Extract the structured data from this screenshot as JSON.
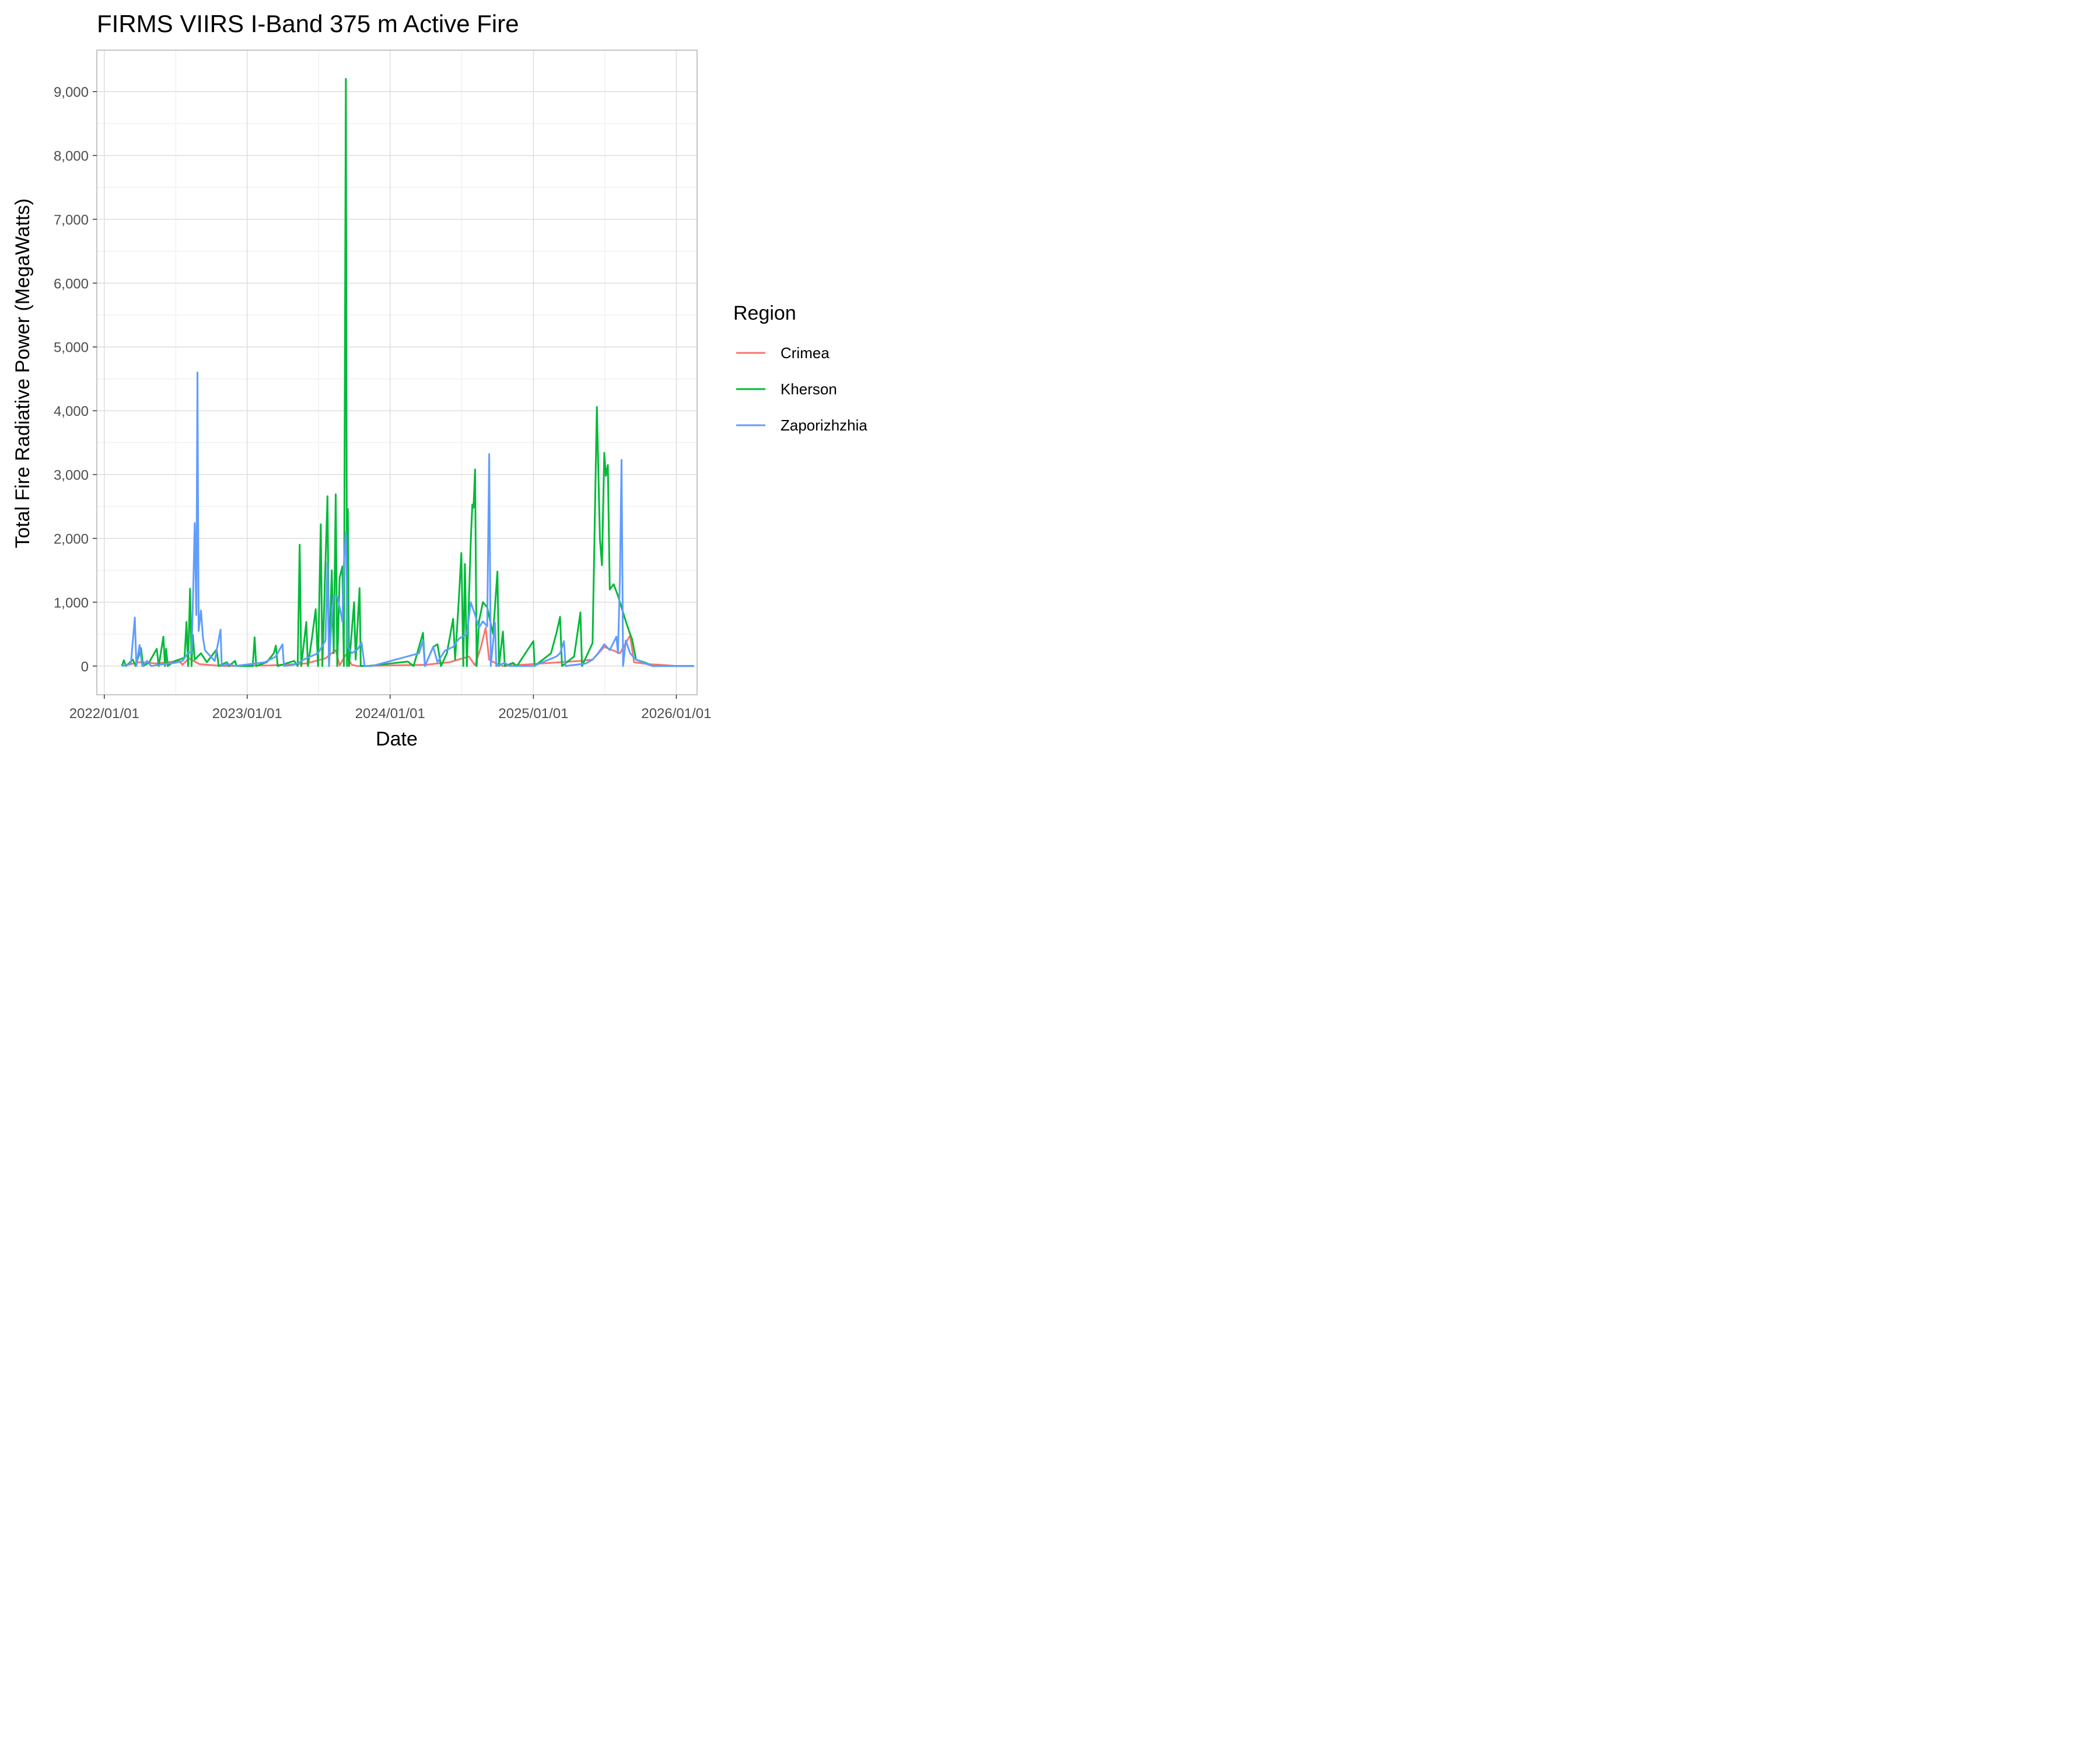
{
  "chart_data": {
    "type": "line",
    "title": "FIRMS VIIRS I-Band 375 m Active Fire",
    "xlabel": "Date",
    "ylabel": "Total Fire Radiative Power (MegaWatts)",
    "xlim": [
      "2021-12-13",
      "2026-02-23"
    ],
    "ylim": [
      -450,
      9650
    ],
    "x_ticks": [
      {
        "date": "2022-01-01",
        "label": "2022/01/01"
      },
      {
        "date": "2023-01-01",
        "label": "2023/01/01"
      },
      {
        "date": "2024-01-01",
        "label": "2024/01/01"
      },
      {
        "date": "2025-01-01",
        "label": "2025/01/01"
      },
      {
        "date": "2026-01-01",
        "label": "2026/01/01"
      }
    ],
    "y_ticks": [
      {
        "value": 0,
        "label": "0"
      },
      {
        "value": 1000,
        "label": "1,000"
      },
      {
        "value": 2000,
        "label": "2,000"
      },
      {
        "value": 3000,
        "label": "3,000"
      },
      {
        "value": 4000,
        "label": "4,000"
      },
      {
        "value": 5000,
        "label": "5,000"
      },
      {
        "value": 6000,
        "label": "6,000"
      },
      {
        "value": 7000,
        "label": "7,000"
      },
      {
        "value": 8000,
        "label": "8,000"
      },
      {
        "value": 9000,
        "label": "9,000"
      }
    ],
    "grid": true,
    "legend": {
      "title": "Region",
      "position": "right"
    },
    "series": [
      {
        "name": "Crimea",
        "color": "#F8766D",
        "points": [
          [
            "2022-02-15",
            0
          ],
          [
            "2022-03-10",
            30
          ],
          [
            "2022-04-01",
            60
          ],
          [
            "2022-05-15",
            40
          ],
          [
            "2022-07-10",
            80
          ],
          [
            "2022-07-20",
            20
          ],
          [
            "2022-08-05",
            120
          ],
          [
            "2022-09-01",
            30
          ],
          [
            "2022-11-01",
            0
          ],
          [
            "2023-03-01",
            10
          ],
          [
            "2023-06-01",
            40
          ],
          [
            "2023-07-20",
            120
          ],
          [
            "2023-08-15",
            250
          ],
          [
            "2023-08-25",
            10
          ],
          [
            "2023-09-10",
            180
          ],
          [
            "2023-09-25",
            20
          ],
          [
            "2023-10-10",
            0
          ],
          [
            "2024-04-01",
            20
          ],
          [
            "2024-06-01",
            60
          ],
          [
            "2024-07-20",
            150
          ],
          [
            "2024-08-05",
            10
          ],
          [
            "2024-08-20",
            300
          ],
          [
            "2024-09-01",
            600
          ],
          [
            "2024-09-10",
            100
          ],
          [
            "2024-09-25",
            50
          ],
          [
            "2024-10-15",
            0
          ],
          [
            "2025-05-01",
            80
          ],
          [
            "2025-06-01",
            100
          ],
          [
            "2025-07-01",
            300
          ],
          [
            "2025-08-10",
            200
          ],
          [
            "2025-09-05",
            480
          ],
          [
            "2025-09-15",
            60
          ],
          [
            "2025-10-20",
            30
          ],
          [
            "2025-11-20",
            20
          ],
          [
            "2026-01-01",
            0
          ],
          [
            "2026-02-15",
            0
          ]
        ]
      },
      {
        "name": "Kherson",
        "color": "#00BA38",
        "points": [
          [
            "2022-02-15",
            0
          ],
          [
            "2022-02-20",
            90
          ],
          [
            "2022-02-25",
            0
          ],
          [
            "2022-03-15",
            100
          ],
          [
            "2022-03-22",
            0
          ],
          [
            "2022-04-05",
            280
          ],
          [
            "2022-04-10",
            0
          ],
          [
            "2022-04-25",
            50
          ],
          [
            "2022-05-15",
            270
          ],
          [
            "2022-05-20",
            0
          ],
          [
            "2022-06-01",
            460
          ],
          [
            "2022-06-05",
            0
          ],
          [
            "2022-06-08",
            270
          ],
          [
            "2022-06-12",
            0
          ],
          [
            "2022-07-01",
            80
          ],
          [
            "2022-07-25",
            130
          ],
          [
            "2022-07-30",
            690
          ],
          [
            "2022-08-03",
            0
          ],
          [
            "2022-08-08",
            1210
          ],
          [
            "2022-08-12",
            0
          ],
          [
            "2022-08-15",
            490
          ],
          [
            "2022-08-20",
            100
          ],
          [
            "2022-09-05",
            200
          ],
          [
            "2022-09-20",
            60
          ],
          [
            "2022-10-15",
            260
          ],
          [
            "2022-10-20",
            0
          ],
          [
            "2022-11-10",
            60
          ],
          [
            "2022-11-15",
            0
          ],
          [
            "2022-12-01",
            80
          ],
          [
            "2022-12-05",
            0
          ],
          [
            "2023-01-15",
            0
          ],
          [
            "2023-01-20",
            450
          ],
          [
            "2023-01-24",
            0
          ],
          [
            "2023-02-20",
            60
          ],
          [
            "2023-03-10",
            200
          ],
          [
            "2023-03-15",
            320
          ],
          [
            "2023-03-20",
            0
          ],
          [
            "2023-05-01",
            80
          ],
          [
            "2023-05-10",
            0
          ],
          [
            "2023-05-15",
            1900
          ],
          [
            "2023-05-19",
            0
          ],
          [
            "2023-06-01",
            690
          ],
          [
            "2023-06-05",
            0
          ],
          [
            "2023-06-15",
            420
          ],
          [
            "2023-06-25",
            890
          ],
          [
            "2023-07-01",
            0
          ],
          [
            "2023-07-08",
            2220
          ],
          [
            "2023-07-12",
            0
          ],
          [
            "2023-07-25",
            2660
          ],
          [
            "2023-07-29",
            0
          ],
          [
            "2023-08-05",
            1500
          ],
          [
            "2023-08-10",
            200
          ],
          [
            "2023-08-15",
            2690
          ],
          [
            "2023-08-19",
            0
          ],
          [
            "2023-08-25",
            1380
          ],
          [
            "2023-09-01",
            1560
          ],
          [
            "2023-09-05",
            0
          ],
          [
            "2023-09-10",
            9200
          ],
          [
            "2023-09-13",
            0
          ],
          [
            "2023-09-15",
            2460
          ],
          [
            "2023-09-18",
            0
          ],
          [
            "2023-10-01",
            1000
          ],
          [
            "2023-10-05",
            100
          ],
          [
            "2023-10-15",
            1220
          ],
          [
            "2023-10-18",
            0
          ],
          [
            "2023-11-05",
            0
          ],
          [
            "2024-02-15",
            70
          ],
          [
            "2024-03-01",
            0
          ],
          [
            "2024-03-25",
            520
          ],
          [
            "2024-03-30",
            0
          ],
          [
            "2024-04-20",
            300
          ],
          [
            "2024-05-01",
            340
          ],
          [
            "2024-05-10",
            0
          ],
          [
            "2024-05-25",
            200
          ],
          [
            "2024-06-10",
            740
          ],
          [
            "2024-06-15",
            100
          ],
          [
            "2024-06-25",
            1100
          ],
          [
            "2024-07-01",
            1770
          ],
          [
            "2024-07-06",
            0
          ],
          [
            "2024-07-10",
            1600
          ],
          [
            "2024-07-15",
            0
          ],
          [
            "2024-07-25",
            1950
          ],
          [
            "2024-07-29",
            2530
          ],
          [
            "2024-08-01",
            2480
          ],
          [
            "2024-08-05",
            3080
          ],
          [
            "2024-08-09",
            0
          ],
          [
            "2024-08-15",
            700
          ],
          [
            "2024-08-25",
            1000
          ],
          [
            "2024-09-05",
            920
          ],
          [
            "2024-09-20",
            500
          ],
          [
            "2024-10-01",
            1480
          ],
          [
            "2024-10-05",
            0
          ],
          [
            "2024-10-15",
            540
          ],
          [
            "2024-10-20",
            0
          ],
          [
            "2024-11-10",
            50
          ],
          [
            "2024-11-20",
            0
          ],
          [
            "2025-01-01",
            390
          ],
          [
            "2025-01-04",
            0
          ],
          [
            "2025-02-15",
            200
          ],
          [
            "2025-03-01",
            520
          ],
          [
            "2025-03-10",
            770
          ],
          [
            "2025-03-15",
            0
          ],
          [
            "2025-04-15",
            150
          ],
          [
            "2025-05-01",
            840
          ],
          [
            "2025-05-05",
            0
          ],
          [
            "2025-06-01",
            360
          ],
          [
            "2025-06-12",
            4060
          ],
          [
            "2025-06-16",
            3030
          ],
          [
            "2025-06-20",
            1980
          ],
          [
            "2025-06-25",
            1580
          ],
          [
            "2025-07-01",
            3340
          ],
          [
            "2025-07-05",
            2980
          ],
          [
            "2025-07-10",
            3150
          ],
          [
            "2025-07-15",
            1200
          ],
          [
            "2025-07-25",
            1280
          ],
          [
            "2025-08-05",
            1100
          ],
          [
            "2025-08-15",
            900
          ],
          [
            "2025-08-25",
            700
          ],
          [
            "2025-09-05",
            500
          ],
          [
            "2025-09-10",
            420
          ],
          [
            "2025-09-20",
            100
          ],
          [
            "2025-10-15",
            50
          ],
          [
            "2025-11-01",
            0
          ],
          [
            "2026-02-15",
            0
          ]
        ]
      },
      {
        "name": "Zaporizhzhia",
        "color": "#619CFF",
        "points": [
          [
            "2022-02-15",
            0
          ],
          [
            "2022-03-10",
            40
          ],
          [
            "2022-03-20",
            760
          ],
          [
            "2022-03-24",
            0
          ],
          [
            "2022-04-01",
            330
          ],
          [
            "2022-04-08",
            0
          ],
          [
            "2022-04-20",
            80
          ],
          [
            "2022-05-01",
            0
          ],
          [
            "2022-06-01",
            30
          ],
          [
            "2022-07-01",
            50
          ],
          [
            "2022-07-20",
            80
          ],
          [
            "2022-08-05",
            220
          ],
          [
            "2022-08-12",
            200
          ],
          [
            "2022-08-16",
            1140
          ],
          [
            "2022-08-20",
            2240
          ],
          [
            "2022-08-24",
            800
          ],
          [
            "2022-08-27",
            4600
          ],
          [
            "2022-08-30",
            550
          ],
          [
            "2022-09-05",
            870
          ],
          [
            "2022-09-10",
            450
          ],
          [
            "2022-09-15",
            250
          ],
          [
            "2022-09-25",
            180
          ],
          [
            "2022-10-10",
            80
          ],
          [
            "2022-10-25",
            570
          ],
          [
            "2022-10-28",
            0
          ],
          [
            "2022-11-15",
            30
          ],
          [
            "2022-12-01",
            0
          ],
          [
            "2023-02-15",
            60
          ],
          [
            "2023-03-15",
            150
          ],
          [
            "2023-04-01",
            340
          ],
          [
            "2023-04-05",
            0
          ],
          [
            "2023-05-01",
            20
          ],
          [
            "2023-06-01",
            120
          ],
          [
            "2023-07-01",
            200
          ],
          [
            "2023-07-20",
            400
          ],
          [
            "2023-07-25",
            1620
          ],
          [
            "2023-07-29",
            0
          ],
          [
            "2023-08-05",
            750
          ],
          [
            "2023-08-10",
            1100
          ],
          [
            "2023-08-20",
            1080
          ],
          [
            "2023-09-01",
            700
          ],
          [
            "2023-09-05",
            1600
          ],
          [
            "2023-09-10",
            2100
          ],
          [
            "2023-09-15",
            300
          ],
          [
            "2023-09-25",
            200
          ],
          [
            "2023-10-10",
            260
          ],
          [
            "2023-10-20",
            370
          ],
          [
            "2023-10-28",
            0
          ],
          [
            "2023-11-15",
            0
          ],
          [
            "2024-03-15",
            200
          ],
          [
            "2024-03-25",
            400
          ],
          [
            "2024-03-30",
            0
          ],
          [
            "2024-04-20",
            300
          ],
          [
            "2024-05-01",
            60
          ],
          [
            "2024-05-20",
            240
          ],
          [
            "2024-06-10",
            300
          ],
          [
            "2024-06-25",
            430
          ],
          [
            "2024-07-15",
            500
          ],
          [
            "2024-07-25",
            1000
          ],
          [
            "2024-08-05",
            800
          ],
          [
            "2024-08-15",
            600
          ],
          [
            "2024-08-25",
            700
          ],
          [
            "2024-09-05",
            620
          ],
          [
            "2024-09-10",
            3320
          ],
          [
            "2024-09-14",
            0
          ],
          [
            "2024-09-25",
            680
          ],
          [
            "2024-09-28",
            0
          ],
          [
            "2024-10-20",
            50
          ],
          [
            "2024-11-01",
            0
          ],
          [
            "2025-01-01",
            0
          ],
          [
            "2025-03-01",
            150
          ],
          [
            "2025-03-10",
            200
          ],
          [
            "2025-03-20",
            390
          ],
          [
            "2025-03-24",
            0
          ],
          [
            "2025-05-15",
            40
          ],
          [
            "2025-06-01",
            100
          ],
          [
            "2025-06-15",
            200
          ],
          [
            "2025-07-01",
            340
          ],
          [
            "2025-07-15",
            250
          ],
          [
            "2025-08-01",
            460
          ],
          [
            "2025-08-05",
            200
          ],
          [
            "2025-08-10",
            1420
          ],
          [
            "2025-08-14",
            3230
          ],
          [
            "2025-08-18",
            0
          ],
          [
            "2025-08-25",
            400
          ],
          [
            "2025-09-05",
            200
          ],
          [
            "2025-09-20",
            100
          ],
          [
            "2025-10-10",
            50
          ],
          [
            "2025-11-01",
            0
          ],
          [
            "2026-02-15",
            0
          ]
        ]
      }
    ]
  }
}
